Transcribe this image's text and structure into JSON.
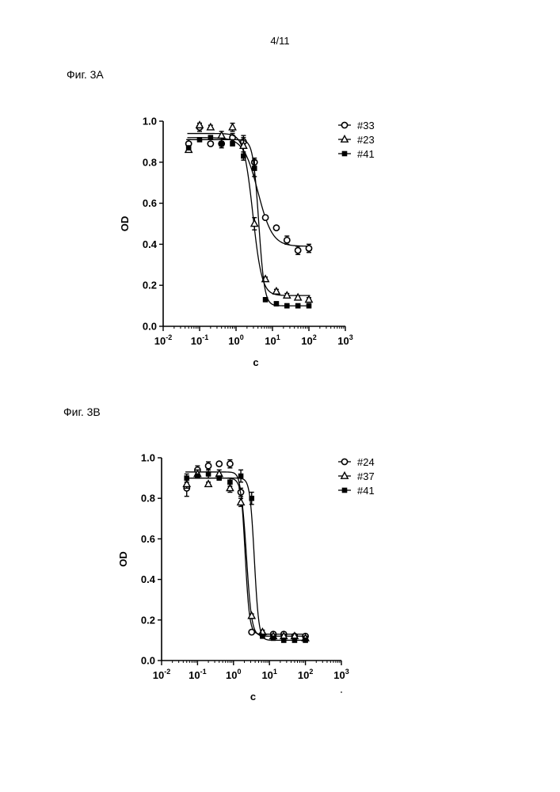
{
  "page": {
    "number": "4/11"
  },
  "figures": [
    {
      "label": "Фиг. 3A"
    },
    {
      "label": "Фиг. 3B"
    }
  ],
  "chart_data": [
    {
      "type": "scatter",
      "title": "",
      "xlabel": "c",
      "ylabel": "OD",
      "xscale": "log",
      "xlim": [
        0.01,
        1000
      ],
      "ylim": [
        0.0,
        1.0
      ],
      "x_ticks": [
        {
          "v": 0.01,
          "base": "10",
          "exp": "-2"
        },
        {
          "v": 0.1,
          "base": "10",
          "exp": "-1"
        },
        {
          "v": 1,
          "base": "10",
          "exp": "0"
        },
        {
          "v": 10,
          "base": "10",
          "exp": "1"
        },
        {
          "v": 100,
          "base": "10",
          "exp": "2"
        },
        {
          "v": 1000,
          "base": "10",
          "exp": "3"
        }
      ],
      "y_ticks": [
        "0.0",
        "0.2",
        "0.4",
        "0.6",
        "0.8",
        "1.0"
      ],
      "legend_position": "top-right",
      "grid": false,
      "series": [
        {
          "name": "#33",
          "marker": "circle-open",
          "x": [
            0.05,
            0.1,
            0.2,
            0.4,
            0.8,
            1.6,
            3.2,
            6.4,
            12.8,
            25,
            50,
            100
          ],
          "y": [
            0.89,
            0.97,
            0.89,
            0.89,
            0.92,
            0.9,
            0.8,
            0.53,
            0.48,
            0.42,
            0.37,
            0.38
          ],
          "err": [
            0.02,
            0.02,
            0.01,
            0.02,
            0.02,
            0.03,
            0.02,
            0.01,
            0.01,
            0.02,
            0.02,
            0.02
          ],
          "fit": {
            "top": 0.92,
            "bottom": 0.39,
            "ec50": 4.0,
            "hill": 2.2
          }
        },
        {
          "name": "#23",
          "marker": "triangle-open",
          "x": [
            0.05,
            0.1,
            0.2,
            0.4,
            0.8,
            1.6,
            3.2,
            6.4,
            12.8,
            25,
            50,
            100
          ],
          "y": [
            0.86,
            0.98,
            0.97,
            0.93,
            0.97,
            0.88,
            0.5,
            0.23,
            0.17,
            0.15,
            0.14,
            0.13
          ],
          "err": [
            0.01,
            0.01,
            0.01,
            0.02,
            0.02,
            0.04,
            0.03,
            0.01,
            0.01,
            0.01,
            0.01,
            0.01
          ],
          "fit": {
            "top": 0.94,
            "bottom": 0.15,
            "ec50": 2.9,
            "hill": 3.5
          }
        },
        {
          "name": "#41",
          "marker": "square-filled",
          "x": [
            0.05,
            0.1,
            0.2,
            0.4,
            0.8,
            1.6,
            3.2,
            6.4,
            12.8,
            25,
            50,
            100
          ],
          "y": [
            0.87,
            0.91,
            0.92,
            0.89,
            0.89,
            0.83,
            0.77,
            0.13,
            0.11,
            0.1,
            0.1,
            0.1
          ],
          "err": [
            0.01,
            0.01,
            0.01,
            0.01,
            0.01,
            0.02,
            0.04,
            0.01,
            0.01,
            0.01,
            0.01,
            0.01
          ],
          "fit": {
            "top": 0.91,
            "bottom": 0.1,
            "ec50": 4.2,
            "hill": 5.5
          }
        }
      ]
    },
    {
      "type": "scatter",
      "title": "",
      "xlabel": "c",
      "ylabel": "OD",
      "xscale": "log",
      "xlim": [
        0.01,
        1000
      ],
      "ylim": [
        0.0,
        1.0
      ],
      "x_ticks": [
        {
          "v": 0.01,
          "base": "10",
          "exp": "-2"
        },
        {
          "v": 0.1,
          "base": "10",
          "exp": "-1"
        },
        {
          "v": 1,
          "base": "10",
          "exp": "0"
        },
        {
          "v": 10,
          "base": "10",
          "exp": "1"
        },
        {
          "v": 100,
          "base": "10",
          "exp": "2"
        },
        {
          "v": 1000,
          "base": "10",
          "exp": "3"
        }
      ],
      "y_ticks": [
        "0.0",
        "0.2",
        "0.4",
        "0.6",
        "0.8",
        "1.0"
      ],
      "legend_position": "top-right",
      "grid": false,
      "series": [
        {
          "name": "#24",
          "marker": "circle-open",
          "x": [
            0.05,
            0.1,
            0.2,
            0.4,
            0.8,
            1.6,
            3.2,
            6.4,
            12.8,
            25,
            50,
            100
          ],
          "y": [
            0.85,
            0.94,
            0.96,
            0.97,
            0.97,
            0.83,
            0.14,
            0.13,
            0.13,
            0.13,
            0.12,
            0.12
          ],
          "err": [
            0.04,
            0.02,
            0.02,
            0.01,
            0.02,
            0.02,
            0.01,
            0.01,
            0.01,
            0.01,
            0.01,
            0.01
          ],
          "fit": {
            "top": 0.93,
            "bottom": 0.13,
            "ec50": 2.1,
            "hill": 7.0
          }
        },
        {
          "name": "#37",
          "marker": "triangle-open",
          "x": [
            0.05,
            0.1,
            0.2,
            0.4,
            0.8,
            1.6,
            3.2,
            6.4,
            12.8,
            25,
            50,
            100
          ],
          "y": [
            0.87,
            0.92,
            0.87,
            0.92,
            0.85,
            0.78,
            0.22,
            0.14,
            0.12,
            0.12,
            0.12,
            0.11
          ],
          "err": [
            0.02,
            0.02,
            0.01,
            0.02,
            0.02,
            0.02,
            0.01,
            0.01,
            0.01,
            0.01,
            0.01,
            0.01
          ],
          "fit": {
            "top": 0.9,
            "bottom": 0.12,
            "ec50": 2.3,
            "hill": 6.0
          }
        },
        {
          "name": "#41",
          "marker": "square-filled",
          "x": [
            0.05,
            0.1,
            0.2,
            0.4,
            0.8,
            1.6,
            3.2,
            6.4,
            12.8,
            25,
            50,
            100
          ],
          "y": [
            0.9,
            0.91,
            0.92,
            0.9,
            0.88,
            0.91,
            0.8,
            0.12,
            0.11,
            0.1,
            0.1,
            0.1
          ],
          "err": [
            0.02,
            0.01,
            0.02,
            0.01,
            0.02,
            0.03,
            0.03,
            0.01,
            0.01,
            0.01,
            0.01,
            0.01
          ],
          "fit": {
            "top": 0.9,
            "bottom": 0.1,
            "ec50": 3.8,
            "hill": 7.0
          }
        }
      ]
    }
  ]
}
